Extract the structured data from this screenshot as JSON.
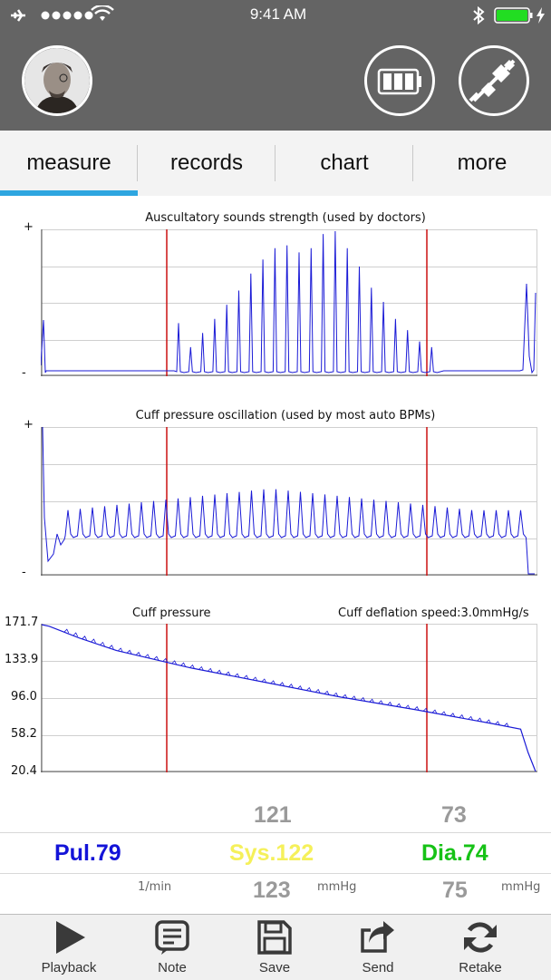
{
  "status_bar": {
    "time": "9:41 AM"
  },
  "tabs": [
    {
      "label": "measure",
      "active": true
    },
    {
      "label": "records"
    },
    {
      "label": "chart"
    },
    {
      "label": "more"
    }
  ],
  "colors": {
    "accent": "#2ea6e0",
    "trace": "#1a1ad6",
    "marker": "#cc1111",
    "pulse": "#1313d8",
    "sys": "#f5f05a",
    "dia": "#16c216"
  },
  "icons": [
    "avatar",
    "battery-icon",
    "unplugged-icon",
    "signal-icon",
    "wifi-icon",
    "bluetooth-icon"
  ],
  "charts": {
    "auscultatory": {
      "title": "Auscultatory sounds strength (used by doctors)",
      "ymax": "+",
      "ymin": "-"
    },
    "oscillation": {
      "title": "Cuff pressure oscillation (used by most auto BPMs)",
      "ymax": "+",
      "ymin": "-"
    },
    "cuff": {
      "title": "Cuff pressure",
      "speed": "Cuff deflation speed:3.0mmHg/s",
      "ticks": [
        "171.7",
        "133.9",
        "96.0",
        "58.2",
        "20.4"
      ]
    }
  },
  "chart_data": [
    {
      "type": "line",
      "title": "Auscultatory sounds strength (used by doctors)",
      "ylabel_top": "+",
      "ylabel_bottom": "-",
      "markers": [
        "systolic",
        "diastolic"
      ],
      "peaks": [
        0.35,
        0.18,
        0.28,
        0.38,
        0.48,
        0.58,
        0.7,
        0.8,
        0.88,
        0.9,
        0.85,
        0.88,
        0.98,
        1.0,
        0.88,
        0.75,
        0.6,
        0.5,
        0.38,
        0.3,
        0.22,
        0.18
      ]
    },
    {
      "type": "line",
      "title": "Cuff pressure oscillation (used by most auto BPMs)",
      "ylabel_top": "+",
      "ylabel_bottom": "-",
      "markers": [
        "systolic",
        "diastolic"
      ]
    },
    {
      "type": "line",
      "title": "Cuff pressure",
      "subtitle": "Cuff deflation speed:3.0mmHg/s",
      "yticks": [
        171.7,
        133.9,
        96.0,
        58.2,
        20.4
      ],
      "ylim": [
        20.4,
        171.7
      ],
      "series": [
        {
          "x": [
            0,
            1,
            5,
            10,
            20,
            30,
            40,
            50,
            60,
            64,
            65,
            66
          ],
          "y": [
            171.7,
            170,
            158,
            145,
            127,
            112,
            97,
            84,
            70,
            64,
            40,
            20.4
          ]
        }
      ],
      "markers_y": [
        120,
        73
      ]
    }
  ],
  "readouts": {
    "sys_top": "121",
    "dia_top": "73",
    "pulse": "Pul.79",
    "sys": "Sys.122",
    "dia": "Dia.74",
    "pulse_unit": "1/min",
    "sys_unit": "mmHg",
    "dia_unit": "mmHg",
    "sys_bottom": "123",
    "dia_bottom": "75"
  },
  "toolbar": [
    {
      "label": "Playback",
      "icon": "play-icon"
    },
    {
      "label": "Note",
      "icon": "note-icon"
    },
    {
      "label": "Save",
      "icon": "floppy-icon"
    },
    {
      "label": "Send",
      "icon": "share-icon"
    },
    {
      "label": "Retake",
      "icon": "refresh-icon"
    }
  ]
}
